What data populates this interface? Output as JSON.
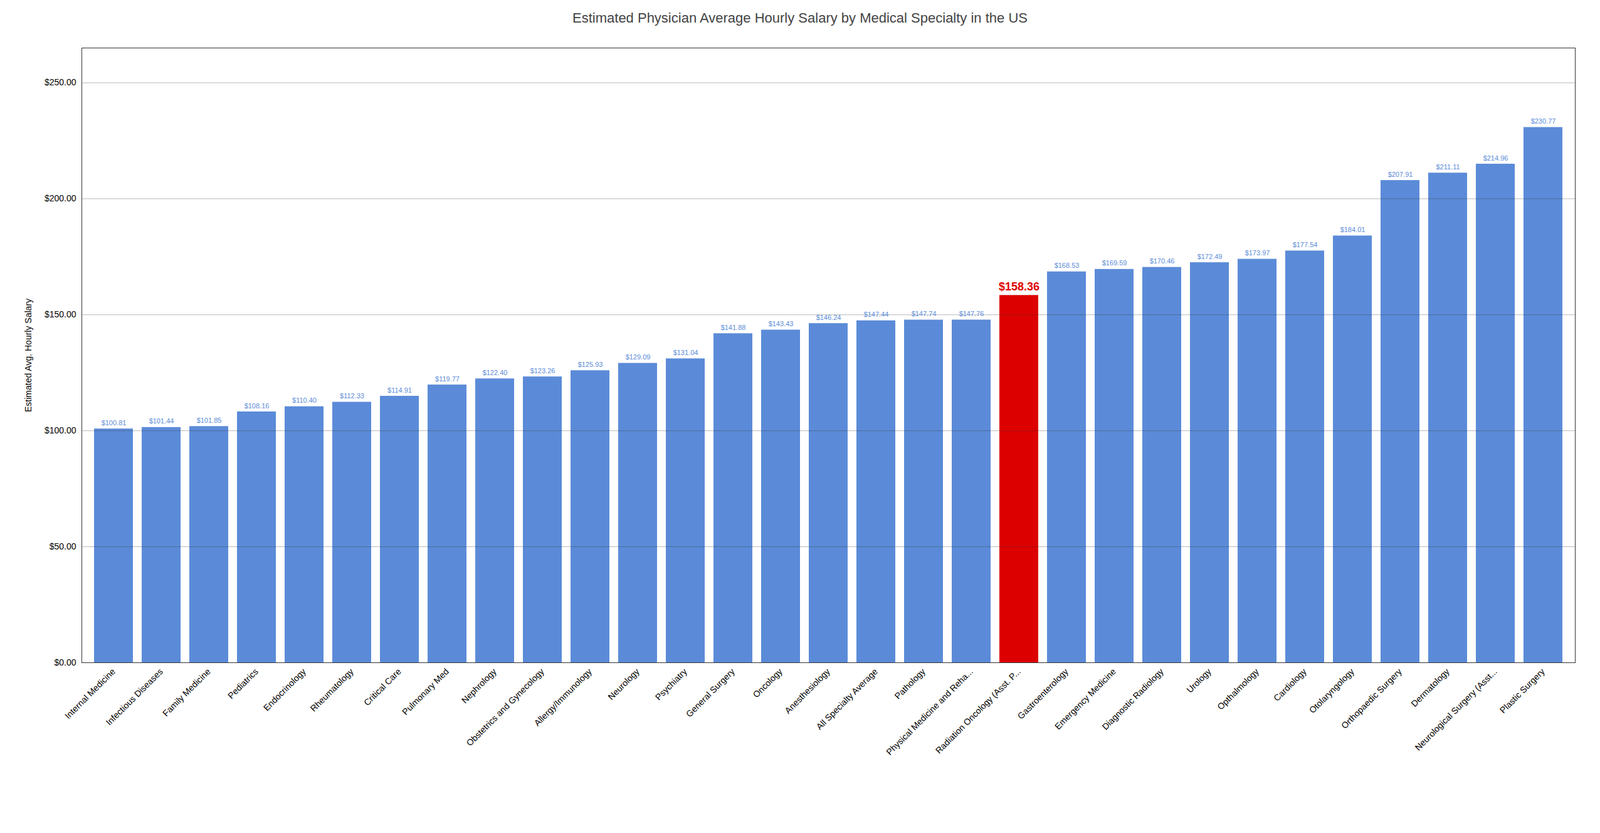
{
  "chart_data": {
    "type": "bar",
    "title": "Estimated Physician Average Hourly Salary by Medical Specialty in the US",
    "ylabel": "Estimated Avg. Hourly Salary",
    "categories": [
      "Internal Medicine",
      "Infectious Diseases",
      "Family Medicine",
      "Pediatrics",
      "Endocrinology",
      "Rheumatology",
      "Critical Care",
      "Pulmonary Med",
      "Nephrology",
      "Obstetrics and Gynecology",
      "Allergy/Immunology",
      "Neurology",
      "Psychiatry",
      "General Surgery",
      "Oncology",
      "Anesthesiology",
      "All Specialty Average",
      "Pathology",
      "Physical Medicine and Reha...",
      "Radiation Oncology (Asst. P...",
      "Gastroenterology",
      "Emergency Medicine",
      "Diagnostic Radiology",
      "Urology",
      "Opthalmology",
      "Cardiology",
      "Otolaryngology",
      "Orthopaedic Surgery",
      "Dermatology",
      "Neurological Surgery (Asst...",
      "Plastic Surgery"
    ],
    "values": [
      100.81,
      101.44,
      101.85,
      108.16,
      110.4,
      112.33,
      114.91,
      119.77,
      122.4,
      123.26,
      125.93,
      129.09,
      131.04,
      141.88,
      143.43,
      146.24,
      147.44,
      147.74,
      147.76,
      158.36,
      168.53,
      169.59,
      170.46,
      172.49,
      173.97,
      177.54,
      184.01,
      207.91,
      211.11,
      214.96,
      230.77
    ],
    "value_labels": [
      "$100.81",
      "$101.44",
      "$101.85",
      "$108.16",
      "$110.40",
      "$112.33",
      "$114.91",
      "$119.77",
      "$122.40",
      "$123.26",
      "$125.93",
      "$129.09",
      "$131.04",
      "$141.88",
      "$143.43",
      "$146.24",
      "$147.44",
      "$147.74",
      "$147.76",
      "$158.36",
      "$168.53",
      "$169.59",
      "$170.46",
      "$172.49",
      "$173.97",
      "$177.54",
      "$184.01",
      "$207.91",
      "$211.11",
      "$214.96",
      "$230.77"
    ],
    "colors": [
      "#5B8BD8",
      "#5B8BD8",
      "#5B8BD8",
      "#5B8BD8",
      "#5B8BD8",
      "#5B8BD8",
      "#5B8BD8",
      "#5B8BD8",
      "#5B8BD8",
      "#5B8BD8",
      "#5B8BD8",
      "#5B8BD8",
      "#5B8BD8",
      "#5B8BD8",
      "#5B8BD8",
      "#5B8BD8",
      "#5B8BD8",
      "#5B8BD8",
      "#5B8BD8",
      "#dd0000",
      "#5B8BD8",
      "#5B8BD8",
      "#5B8BD8",
      "#5B8BD8",
      "#5B8BD8",
      "#5B8BD8",
      "#5B8BD8",
      "#5B8BD8",
      "#5B8BD8",
      "#5B8BD8",
      "#5B8BD8"
    ],
    "ylim": [
      0,
      265
    ],
    "yticks": [
      {
        "value": 0,
        "label": "$0.00"
      },
      {
        "value": 50,
        "label": "$50.00"
      },
      {
        "value": 100,
        "label": "$100.00"
      },
      {
        "value": 150,
        "label": "$150.00"
      },
      {
        "value": 200,
        "label": "$200.00"
      },
      {
        "value": 250,
        "label": "$250.00"
      }
    ],
    "grid": true,
    "data_labels": true
  }
}
